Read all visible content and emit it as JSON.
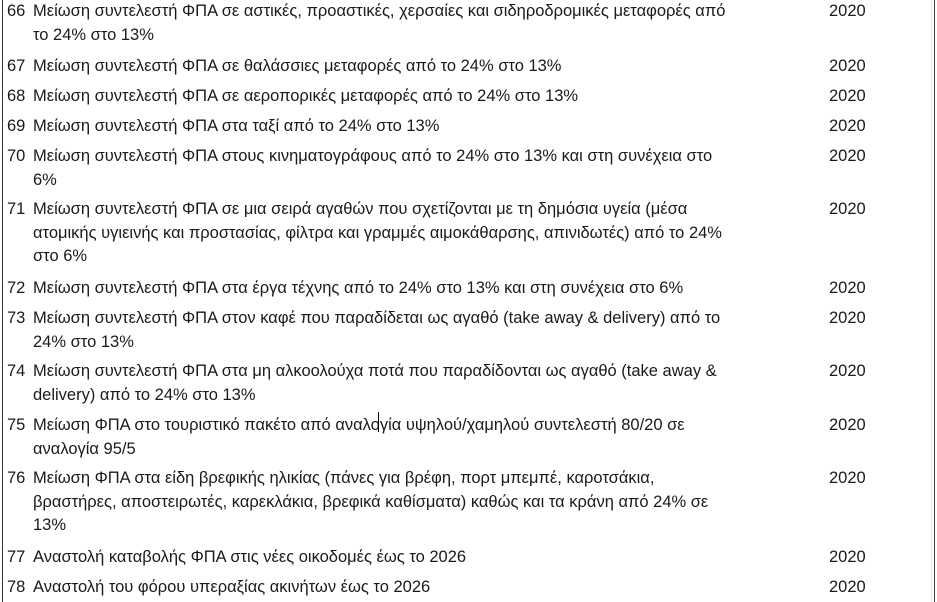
{
  "rows": [
    {
      "num": "66",
      "lines": [
        "Μείωση συντελεστή ΦΠΑ σε αστικές, προαστικές, χερσαίες και σιδηροδρομικές μεταφορές από",
        "το 24% στο 13%"
      ],
      "year": "2020"
    },
    {
      "num": "67",
      "lines": [
        "Μείωση συντελεστή ΦΠΑ σε θαλάσσιες μεταφορές από το 24% στο 13%"
      ],
      "year": "2020"
    },
    {
      "num": "68",
      "lines": [
        "Μείωση συντελεστή ΦΠΑ σε αεροπορικές μεταφορές από το 24% στο 13%"
      ],
      "year": "2020"
    },
    {
      "num": "69",
      "lines": [
        "Μείωση συντελεστή ΦΠΑ στα ταξί από το 24% στο 13%"
      ],
      "year": "2020"
    },
    {
      "num": "70",
      "lines": [
        "Μείωση συντελεστή ΦΠΑ στους κινηματογράφους από το 24% στο 13% και στη συνέχεια στο",
        "6%"
      ],
      "year": "2020"
    },
    {
      "num": "71",
      "lines": [
        "Μείωση συντελεστή ΦΠΑ σε μια σειρά αγαθών που σχετίζονται με τη δημόσια υγεία (μέσα",
        "ατομικής υγιεινής και προστασίας, φίλτρα και γραμμές αιμοκάθαρσης, απινιδωτές) από το 24%",
        "στο 6%"
      ],
      "year": "2020"
    },
    {
      "num": "72",
      "lines": [
        "Μείωση συντελεστή ΦΠΑ στα έργα τέχνης από το 24% στο 13% και στη συνέχεια στο 6%"
      ],
      "year": "2020"
    },
    {
      "num": "73",
      "lines": [
        "Μείωση συντελεστή ΦΠΑ στον καφέ που παραδίδεται ως αγαθό (take away & delivery) από το",
        "24% στο 13%"
      ],
      "year": "2020"
    },
    {
      "num": "74",
      "lines": [
        "Μείωση συντελεστή ΦΠΑ στα μη αλκοολούχα ποτά που παραδίδονται ως αγαθό (take away &",
        "delivery) από το 24% στο 13%"
      ],
      "year": "2020"
    },
    {
      "num": "75",
      "lines": [
        "Μείωση ΦΠΑ στο τουριστικό πακέτο από αναλογία υψηλού/χαμηλού συντελεστή 80/20 σε",
        "αναλογία 95/5"
      ],
      "year": "2020"
    },
    {
      "num": "76",
      "lines": [
        "Μείωση ΦΠΑ στα είδη βρεφικής ηλικίας (πάνες για βρέφη, πορτ μπεμπέ, καροτσάκια,",
        "βραστήρες, αποστειρωτές, καρεκλάκια, βρεφικά καθίσματα) καθώς και τα κράνη από 24% σε",
        "13%"
      ],
      "year": "2020"
    },
    {
      "num": "77",
      "lines": [
        "Αναστολή καταβολής ΦΠΑ στις νέες οικοδομές έως το 2026"
      ],
      "year": "2020"
    },
    {
      "num": "78",
      "lines": [
        "Αναστολή του φόρου υπεραξίας ακινήτων έως το 2026"
      ],
      "year": "2020"
    }
  ]
}
